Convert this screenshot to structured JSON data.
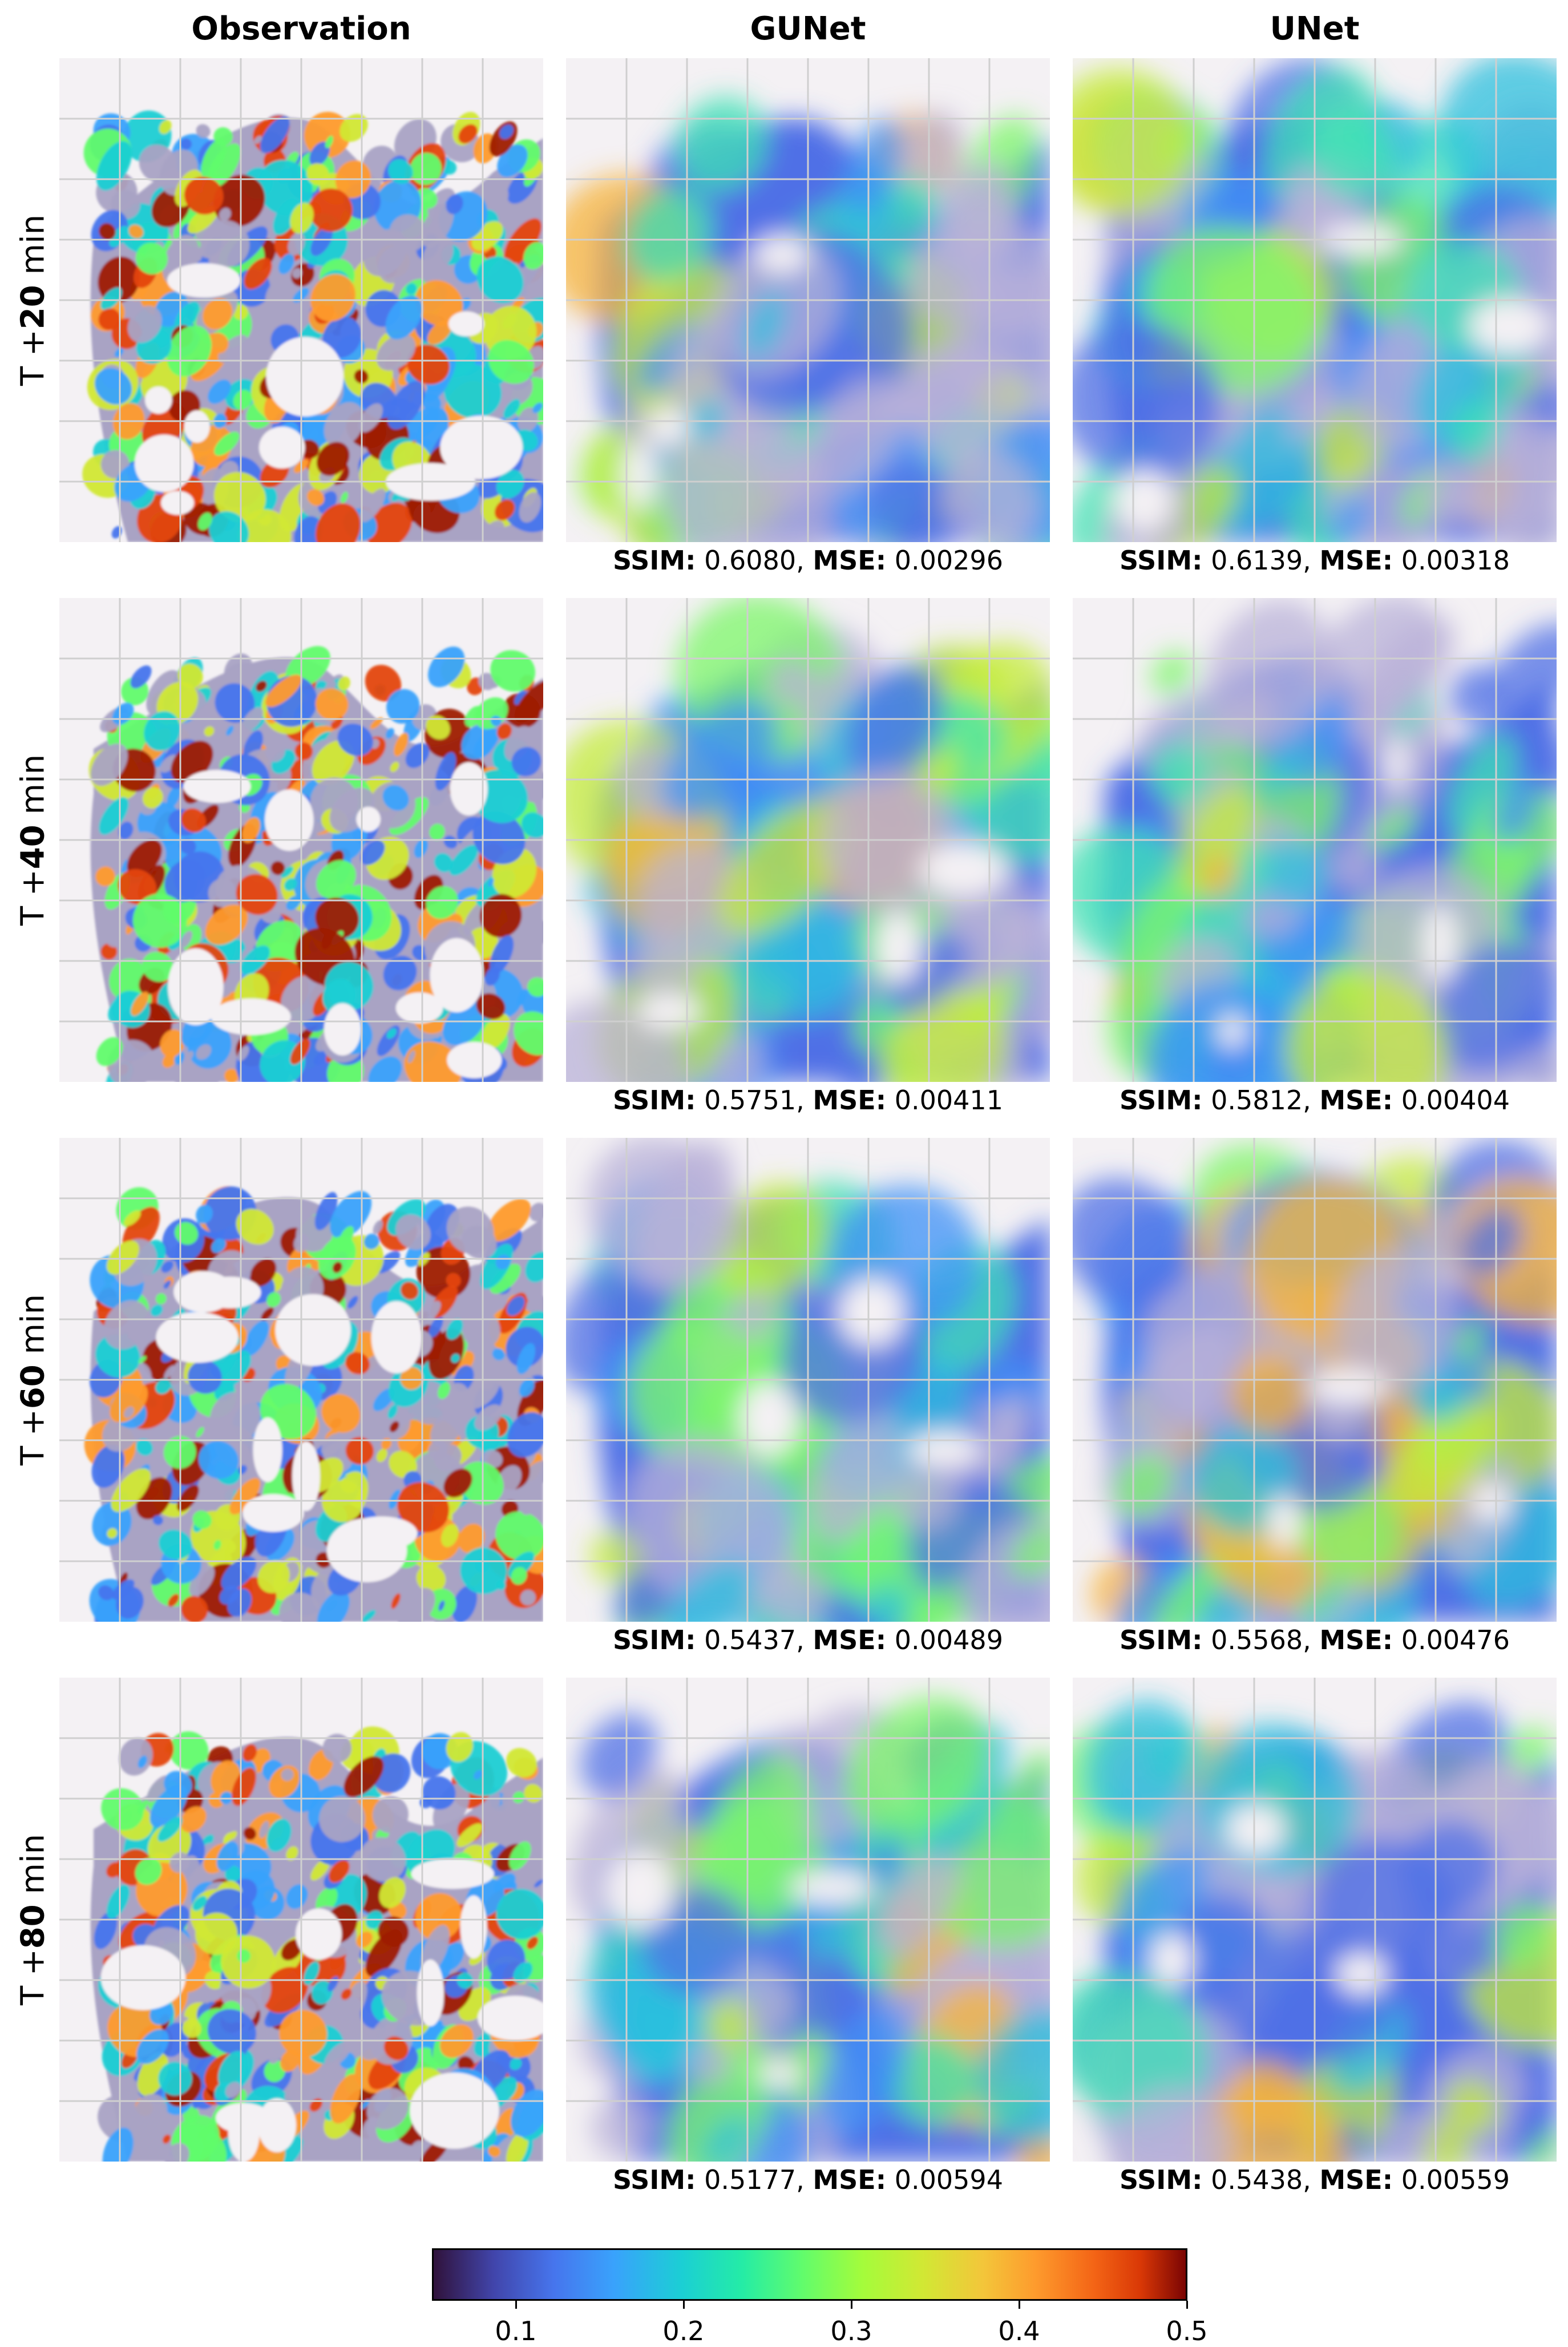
{
  "columns": [
    {
      "title": "Observation"
    },
    {
      "title": "GUNet"
    },
    {
      "title": "UNet"
    }
  ],
  "rows": [
    {
      "label_prefix": "T +",
      "label_value": "20",
      "label_unit": " min",
      "gunet": {
        "ssim_key": "SSIM",
        "ssim": "0.6080",
        "mse_key": "MSE",
        "mse": "0.00296"
      },
      "unet": {
        "ssim_key": "SSIM",
        "ssim": "0.6139",
        "mse_key": "MSE",
        "mse": "0.00318"
      }
    },
    {
      "label_prefix": "T +",
      "label_value": "40",
      "label_unit": " min",
      "gunet": {
        "ssim_key": "SSIM",
        "ssim": "0.5751",
        "mse_key": "MSE",
        "mse": "0.00411"
      },
      "unet": {
        "ssim_key": "SSIM",
        "ssim": "0.5812",
        "mse_key": "MSE",
        "mse": "0.00404"
      }
    },
    {
      "label_prefix": "T +",
      "label_value": "60",
      "label_unit": " min",
      "gunet": {
        "ssim_key": "SSIM",
        "ssim": "0.5437",
        "mse_key": "MSE",
        "mse": "0.00489"
      },
      "unet": {
        "ssim_key": "SSIM",
        "ssim": "0.5568",
        "mse_key": "MSE",
        "mse": "0.00476"
      }
    },
    {
      "label_prefix": "T +",
      "label_value": "80",
      "label_unit": " min",
      "gunet": {
        "ssim_key": "SSIM",
        "ssim": "0.5177",
        "mse_key": "MSE",
        "mse": "0.00594"
      },
      "unet": {
        "ssim_key": "SSIM",
        "ssim": "0.5438",
        "mse_key": "MSE",
        "mse": "0.00559"
      }
    }
  ],
  "colorbar": {
    "colormap": "turbo",
    "range": [
      0.05,
      0.5
    ],
    "ticks": [
      "0.1",
      "0.2",
      "0.3",
      "0.4",
      "0.5"
    ]
  },
  "chart_data": {
    "type": "heatmap",
    "title": "",
    "columns": [
      "Observation",
      "GUNet",
      "UNet"
    ],
    "rows": [
      "T +20 min",
      "T +40 min",
      "T +60 min",
      "T +80 min"
    ],
    "metrics": {
      "GUNet": {
        "SSIM": [
          0.608,
          0.5751,
          0.5437,
          0.5177
        ],
        "MSE": [
          0.00296,
          0.00411,
          0.00489,
          0.00594
        ]
      },
      "UNet": {
        "SSIM": [
          0.6139,
          0.5812,
          0.5568,
          0.5438
        ],
        "MSE": [
          0.00318,
          0.00404,
          0.00476,
          0.00559
        ]
      }
    },
    "colorbar_range": [
      0.05,
      0.5
    ],
    "colorbar_ticks": [
      0.1,
      0.2,
      0.3,
      0.4,
      0.5
    ],
    "grid": true
  }
}
